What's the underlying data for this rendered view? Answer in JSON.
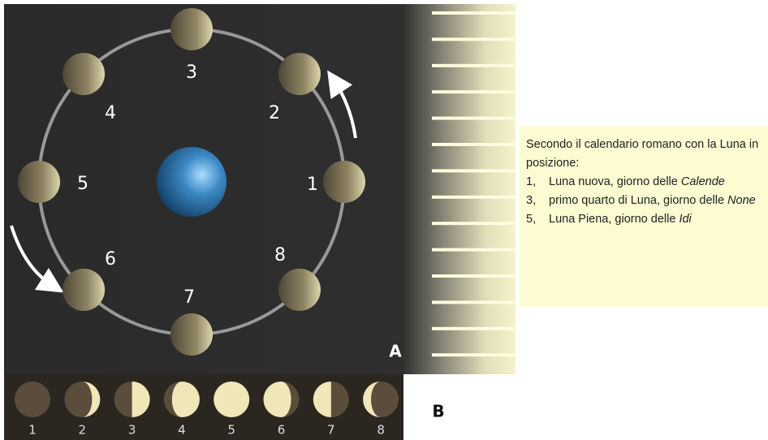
{
  "orbit_labels": [
    "1",
    "2",
    "3",
    "4",
    "5",
    "6",
    "7",
    "8"
  ],
  "panel_a": "A",
  "panel_b": "B",
  "phase_labels": [
    "1",
    "2",
    "3",
    "4",
    "5",
    "6",
    "7",
    "8"
  ],
  "caption": {
    "intro": "Secondo il calendario romano con la Luna in posizione:",
    "items": [
      {
        "number": "1,",
        "text": "Luna nuova, giorno delle",
        "emphasis": "Calende"
      },
      {
        "number": "3,",
        "text": "primo quarto di Luna, giorno delle",
        "emphasis": "None"
      },
      {
        "number": "5,",
        "text": "Luna Piena, giorno delle",
        "emphasis": "Idi"
      }
    ]
  }
}
